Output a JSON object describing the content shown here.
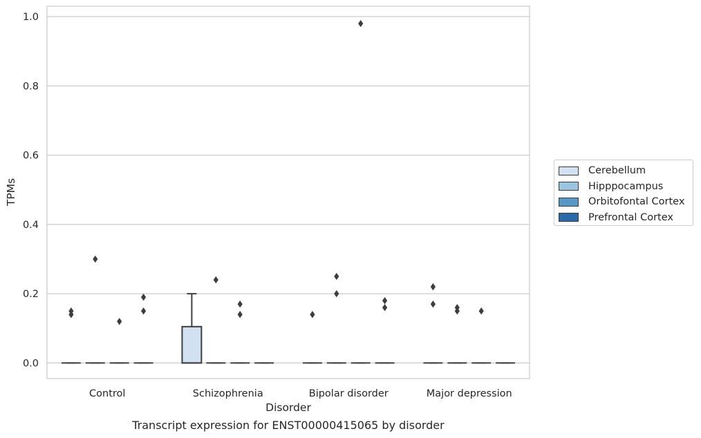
{
  "chart_data": {
    "type": "box",
    "xlabel": "Disorder",
    "ylabel": "TPMs",
    "caption": "Transcript expression for ENST00000415065 by disorder",
    "categories": [
      "Control",
      "Schizophrenia",
      "Bipolar disorder",
      "Major depression"
    ],
    "yticks": [
      "0.0",
      "0.2",
      "0.4",
      "0.6",
      "0.8",
      "1.0"
    ],
    "ytick_values": [
      0.0,
      0.2,
      0.4,
      0.6,
      0.8,
      1.0
    ],
    "ylim": [
      -0.045,
      1.03
    ],
    "grid": true,
    "legend_placement": "right, outside",
    "series": [
      {
        "name": "Cerebellum",
        "color": "#d1e1f1",
        "boxes": [
          {
            "q1": 0,
            "median": 0,
            "q3": 0,
            "whisker_low": 0,
            "whisker_high": 0,
            "outliers": [
              0.15,
              0.14
            ]
          },
          {
            "q1": 0,
            "median": 0,
            "q3": 0.105,
            "whisker_low": 0,
            "whisker_high": 0.2,
            "outliers": []
          },
          {
            "q1": 0,
            "median": 0,
            "q3": 0,
            "whisker_low": 0,
            "whisker_high": 0,
            "outliers": [
              0.14
            ]
          },
          {
            "q1": 0,
            "median": 0,
            "q3": 0,
            "whisker_low": 0,
            "whisker_high": 0,
            "outliers": [
              0.22,
              0.17
            ]
          }
        ]
      },
      {
        "name": "Hipppocampus",
        "color": "#9ac4df",
        "boxes": [
          {
            "q1": 0,
            "median": 0,
            "q3": 0,
            "whisker_low": 0,
            "whisker_high": 0,
            "outliers": [
              0.3
            ]
          },
          {
            "q1": 0,
            "median": 0,
            "q3": 0,
            "whisker_low": 0,
            "whisker_high": 0,
            "outliers": [
              0.24
            ]
          },
          {
            "q1": 0,
            "median": 0,
            "q3": 0,
            "whisker_low": 0,
            "whisker_high": 0,
            "outliers": [
              0.25,
              0.2
            ]
          },
          {
            "q1": 0,
            "median": 0,
            "q3": 0,
            "whisker_low": 0,
            "whisker_high": 0,
            "outliers": [
              0.16,
              0.15
            ]
          }
        ]
      },
      {
        "name": "Orbitofontal Cortex",
        "color": "#5597c7",
        "boxes": [
          {
            "q1": 0,
            "median": 0,
            "q3": 0,
            "whisker_low": 0,
            "whisker_high": 0,
            "outliers": [
              0.12
            ]
          },
          {
            "q1": 0,
            "median": 0,
            "q3": 0,
            "whisker_low": 0,
            "whisker_high": 0,
            "outliers": [
              0.17,
              0.14
            ]
          },
          {
            "q1": 0,
            "median": 0,
            "q3": 0,
            "whisker_low": 0,
            "whisker_high": 0,
            "outliers": [
              0.98
            ]
          },
          {
            "q1": 0,
            "median": 0,
            "q3": 0,
            "whisker_low": 0,
            "whisker_high": 0,
            "outliers": [
              0.15
            ]
          }
        ]
      },
      {
        "name": "Prefrontal Cortex",
        "color": "#2a6aa8",
        "boxes": [
          {
            "q1": 0,
            "median": 0,
            "q3": 0,
            "whisker_low": 0,
            "whisker_high": 0,
            "outliers": [
              0.19,
              0.15
            ]
          },
          {
            "q1": 0,
            "median": 0,
            "q3": 0,
            "whisker_low": 0,
            "whisker_high": 0,
            "outliers": []
          },
          {
            "q1": 0,
            "median": 0,
            "q3": 0,
            "whisker_low": 0,
            "whisker_high": 0,
            "outliers": [
              0.18,
              0.16
            ]
          },
          {
            "q1": 0,
            "median": 0,
            "q3": 0,
            "whisker_low": 0,
            "whisker_high": 0,
            "outliers": []
          }
        ]
      }
    ]
  }
}
